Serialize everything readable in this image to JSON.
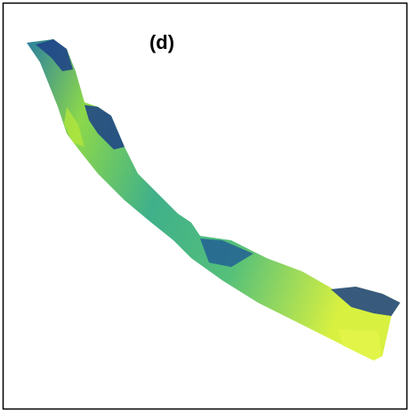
{
  "label": "(d)"
}
